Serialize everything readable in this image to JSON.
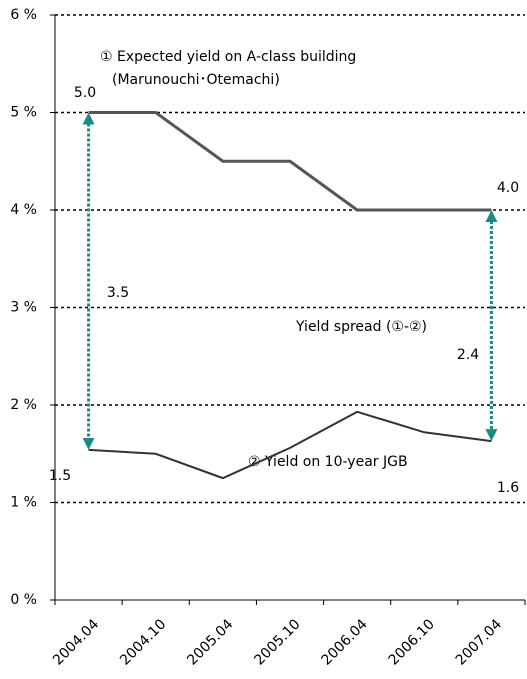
{
  "chart_data": {
    "type": "line",
    "categories": [
      "2004.04",
      "2004.10",
      "2005.04",
      "2005.10",
      "2006.04",
      "2006.10",
      "2007.04"
    ],
    "series": [
      {
        "name": "① Expected yield on A-class building",
        "subname": "(Marunouchi･Otemachi)",
        "color": "#555555",
        "values": [
          5.0,
          5.0,
          4.5,
          4.5,
          4.0,
          4.0,
          4.0
        ],
        "value_labels": [
          "5.0",
          null,
          null,
          null,
          null,
          null,
          "4.0"
        ]
      },
      {
        "name": "② Yield on 10-year JGB",
        "color": "#333333",
        "values": [
          1.54,
          1.5,
          1.25,
          1.56,
          1.93,
          1.72,
          1.63
        ],
        "value_labels": [
          "1.5",
          null,
          null,
          null,
          null,
          null,
          "1.6"
        ]
      }
    ],
    "spread_title": "Yield spread (①-②)",
    "spreads": [
      3.5,
      2.4
    ],
    "spread_color": "#1a8a8a",
    "ylim": [
      0,
      6
    ],
    "yticks": [
      {
        "value": 0,
        "label": "0 %"
      },
      {
        "value": 1,
        "label": "1 %"
      },
      {
        "value": 2,
        "label": "2 %"
      },
      {
        "value": 3,
        "label": "3 %"
      },
      {
        "value": 4,
        "label": "4 %"
      },
      {
        "value": 5,
        "label": "5 %"
      },
      {
        "value": 6,
        "label": "6 %"
      }
    ],
    "grid": true
  }
}
